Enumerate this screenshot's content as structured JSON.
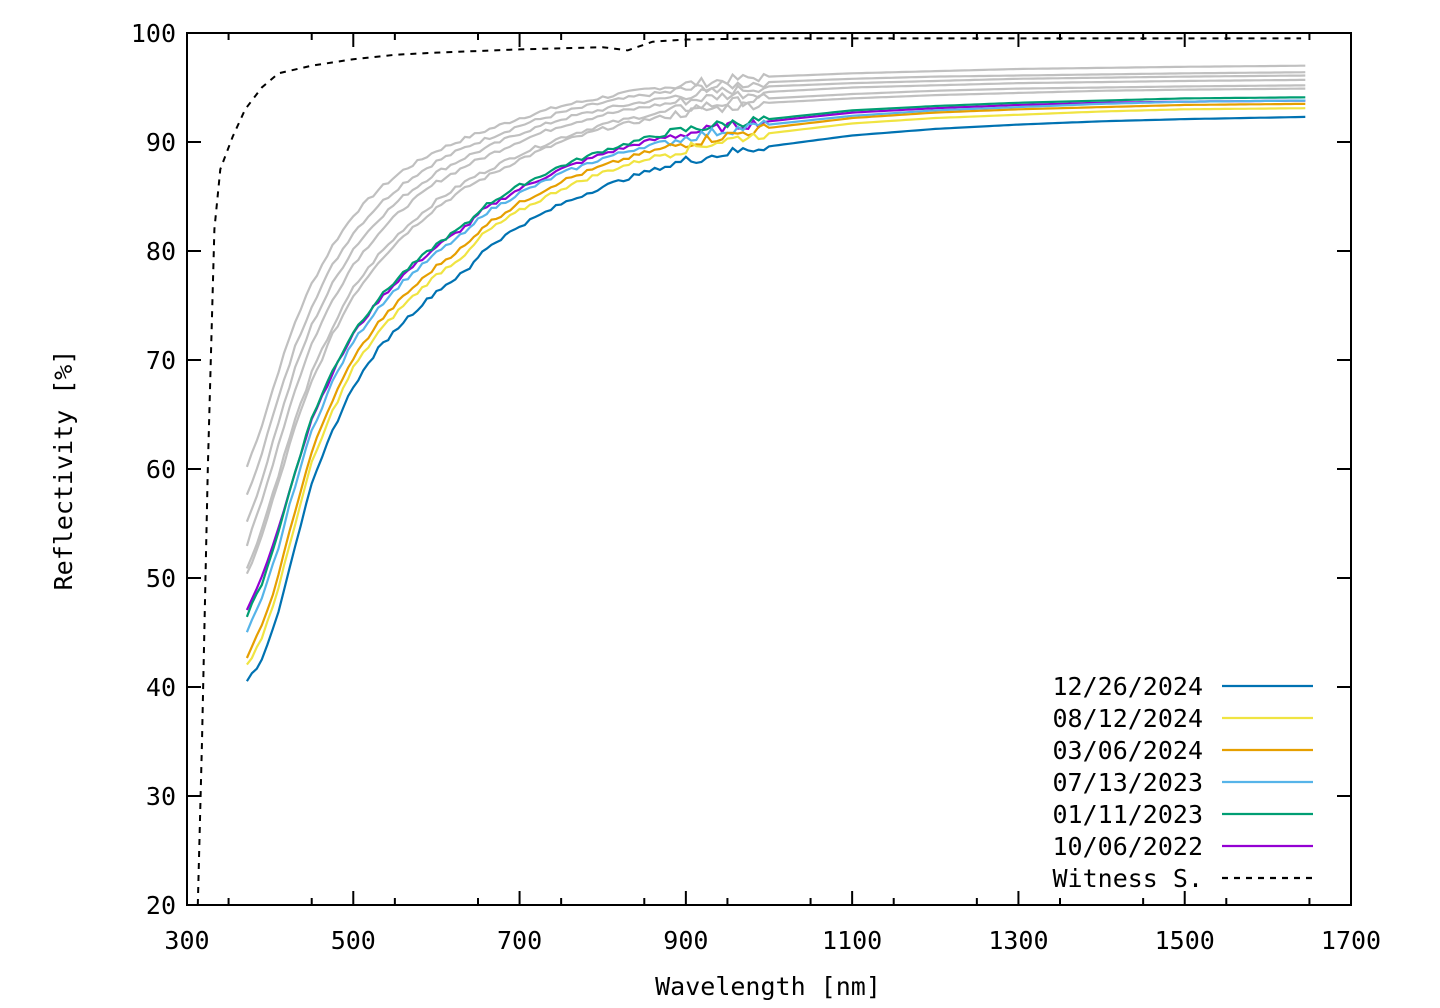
{
  "chart_data": {
    "type": "line",
    "xlabel": "Wavelength [nm]",
    "ylabel": "Reflectivity [%]",
    "xlim": [
      300,
      1700
    ],
    "ylim": [
      20,
      100
    ],
    "xticks": [
      300,
      500,
      700,
      900,
      1100,
      1300,
      1500,
      1700
    ],
    "yticks": [
      20,
      30,
      40,
      50,
      60,
      70,
      80,
      90,
      100
    ],
    "grid": false,
    "legend_position": "bottom-right",
    "series": [
      {
        "name": "12/26/2024",
        "color": "#0072b2",
        "dash": "solid",
        "x": [
          372,
          390,
          410,
          430,
          450,
          475,
          500,
          530,
          560,
          600,
          640,
          655,
          700,
          750,
          800,
          850,
          900,
          950,
          1000,
          1100,
          1200,
          1300,
          1400,
          1500,
          1645
        ],
        "y": [
          40.4,
          42.5,
          47.0,
          53.0,
          58.5,
          63.5,
          67.6,
          71.0,
          73.5,
          76.3,
          78.4,
          80.0,
          82.3,
          84.3,
          85.9,
          87.2,
          88.3,
          89.0,
          89.6,
          90.6,
          91.2,
          91.6,
          91.9,
          92.1,
          92.3
        ]
      },
      {
        "name": "08/12/2024",
        "color": "#f0e442",
        "dash": "solid",
        "x": [
          372,
          390,
          410,
          430,
          450,
          475,
          500,
          530,
          560,
          600,
          640,
          655,
          700,
          750,
          800,
          850,
          900,
          950,
          1000,
          1100,
          1200,
          1300,
          1400,
          1500,
          1645
        ],
        "y": [
          42.0,
          44.5,
          49.0,
          55.0,
          60.5,
          65.3,
          69.3,
          72.5,
          75.0,
          77.8,
          80.0,
          81.5,
          83.7,
          85.7,
          87.2,
          88.4,
          89.4,
          90.2,
          90.8,
          91.7,
          92.2,
          92.5,
          92.8,
          93.0,
          93.1
        ]
      },
      {
        "name": "03/06/2024",
        "color": "#e69f00",
        "dash": "solid",
        "x": [
          372,
          390,
          410,
          430,
          450,
          475,
          500,
          530,
          560,
          600,
          640,
          655,
          700,
          750,
          800,
          850,
          900,
          950,
          1000,
          1100,
          1200,
          1300,
          1400,
          1500,
          1645
        ],
        "y": [
          42.8,
          45.5,
          50.2,
          56.2,
          61.6,
          66.3,
          70.2,
          73.4,
          75.8,
          78.6,
          80.8,
          82.2,
          84.4,
          86.4,
          87.8,
          89.0,
          89.9,
          90.6,
          91.3,
          92.2,
          92.7,
          93.0,
          93.2,
          93.4,
          93.5
        ]
      },
      {
        "name": "07/13/2023",
        "color": "#56b4e9",
        "dash": "solid",
        "x": [
          372,
          390,
          410,
          430,
          450,
          475,
          500,
          530,
          560,
          600,
          640,
          655,
          700,
          750,
          800,
          850,
          900,
          950,
          1000,
          1100,
          1200,
          1300,
          1400,
          1500,
          1645
        ],
        "y": [
          45.0,
          48.0,
          52.8,
          58.5,
          63.5,
          68.0,
          71.7,
          74.8,
          77.2,
          79.8,
          82.0,
          83.3,
          85.3,
          87.1,
          88.5,
          89.6,
          90.4,
          91.1,
          91.6,
          92.4,
          92.9,
          93.2,
          93.5,
          93.7,
          93.8
        ]
      },
      {
        "name": "01/11/2023",
        "color": "#009e73",
        "dash": "solid",
        "x": [
          372,
          390,
          410,
          430,
          450,
          475,
          500,
          530,
          560,
          600,
          640,
          655,
          700,
          750,
          800,
          850,
          900,
          950,
          1000,
          1100,
          1200,
          1300,
          1400,
          1500,
          1645
        ],
        "y": [
          46.5,
          49.5,
          54.2,
          59.8,
          64.7,
          69.0,
          72.6,
          75.6,
          78.0,
          80.6,
          82.7,
          84.0,
          86.0,
          87.8,
          89.2,
          90.3,
          91.1,
          91.7,
          92.1,
          92.9,
          93.3,
          93.6,
          93.8,
          94.0,
          94.1
        ]
      },
      {
        "name": "10/06/2022",
        "color": "#9400d3",
        "dash": "solid",
        "x": [
          372,
          390,
          410,
          430,
          450,
          475,
          500,
          530,
          560,
          600,
          640,
          655,
          700,
          750,
          800,
          850,
          900,
          950,
          1000,
          1100,
          1200,
          1300,
          1400,
          1500,
          1645
        ],
        "y": [
          47.2,
          50.0,
          54.5,
          59.8,
          64.6,
          68.8,
          72.4,
          75.4,
          77.8,
          80.4,
          82.5,
          83.7,
          85.7,
          87.5,
          88.9,
          90.0,
          90.8,
          91.4,
          91.9,
          92.7,
          93.1,
          93.4,
          93.6,
          93.7,
          93.8
        ]
      },
      {
        "name": "Witness S.",
        "color": "#000000",
        "dash": "dashed",
        "x": [
          313,
          318,
          325,
          333,
          340,
          355,
          370,
          390,
          410,
          450,
          500,
          550,
          600,
          700,
          800,
          830,
          860,
          900,
          1000,
          1200,
          1400,
          1640
        ],
        "y": [
          20.0,
          35.0,
          60.0,
          82.0,
          87.5,
          90.5,
          93.0,
          95.0,
          96.3,
          97.0,
          97.6,
          98.0,
          98.2,
          98.5,
          98.7,
          98.4,
          99.2,
          99.4,
          99.5,
          99.5,
          99.5,
          99.5
        ]
      }
    ],
    "gray_series": {
      "color": "#c0c0c0",
      "x": [
        372,
        390,
        410,
        430,
        450,
        475,
        500,
        530,
        560,
        600,
        640,
        700,
        750,
        800,
        850,
        900,
        950,
        1000,
        1100,
        1200,
        1300,
        1400,
        1500,
        1645
      ],
      "curves": [
        [
          60.2,
          64.0,
          69.0,
          73.5,
          77.0,
          80.5,
          83.3,
          85.6,
          87.4,
          89.2,
          90.5,
          92.2,
          93.3,
          94.1,
          94.8,
          95.3,
          95.7,
          96.0,
          96.3,
          96.5,
          96.7,
          96.8,
          96.9,
          97.0
        ],
        [
          57.5,
          61.5,
          66.5,
          71.2,
          75.0,
          78.7,
          81.7,
          84.2,
          86.2,
          88.2,
          89.7,
          91.5,
          92.7,
          93.6,
          94.3,
          94.8,
          95.2,
          95.5,
          95.8,
          96.0,
          96.1,
          96.2,
          96.3,
          96.4
        ],
        [
          55.0,
          59.0,
          64.3,
          69.2,
          73.2,
          77.0,
          80.2,
          82.9,
          85.0,
          87.2,
          88.8,
          90.8,
          92.1,
          93.0,
          93.7,
          94.3,
          94.7,
          95.1,
          95.4,
          95.6,
          95.8,
          95.9,
          96.0,
          96.1
        ],
        [
          53.0,
          57.0,
          62.3,
          67.3,
          71.5,
          75.5,
          78.8,
          81.6,
          83.9,
          86.3,
          88.0,
          90.1,
          91.5,
          92.5,
          93.2,
          93.8,
          94.3,
          94.6,
          95.0,
          95.2,
          95.4,
          95.5,
          95.6,
          95.7
        ],
        [
          50.8,
          54.5,
          59.5,
          64.5,
          68.8,
          73.0,
          76.6,
          79.6,
          82.0,
          84.6,
          86.6,
          88.9,
          90.4,
          91.6,
          92.4,
          93.1,
          93.6,
          94.0,
          94.4,
          94.7,
          94.9,
          95.0,
          95.1,
          95.2
        ],
        [
          50.3,
          53.8,
          58.8,
          63.8,
          68.0,
          72.3,
          75.9,
          79.0,
          81.4,
          84.0,
          86.0,
          88.4,
          90.0,
          91.2,
          92.0,
          92.7,
          93.2,
          93.6,
          94.0,
          94.3,
          94.5,
          94.7,
          94.8,
          94.9
        ]
      ]
    }
  }
}
